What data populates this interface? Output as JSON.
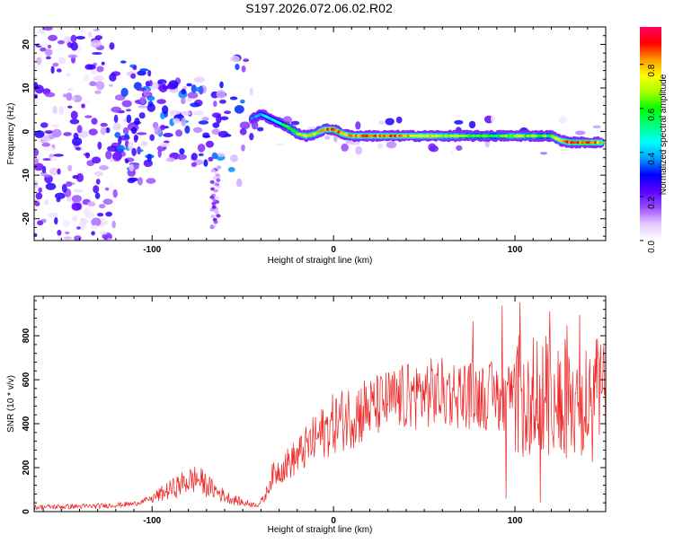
{
  "page": {
    "title": "S197.2026.072.06.02.R02"
  },
  "chart_data": [
    {
      "type": "heatmap",
      "title": "S197.2026.072.06.02.R02",
      "xlabel": "Height of straight line (km)",
      "ylabel": "Frequency (Hz)",
      "xlim": [
        -165,
        150
      ],
      "ylim": [
        -25,
        24
      ],
      "x_ticks": [
        -100,
        0,
        100
      ],
      "y_ticks": [
        20,
        10,
        0,
        -10,
        -20
      ],
      "colorbar": {
        "label": "Normalized spectral amplitude",
        "range": [
          0,
          0.97
        ],
        "ticks": [
          "0.0",
          "0.2",
          "0.4",
          "0.6",
          "0.8"
        ],
        "tick_values": [
          0,
          0.2,
          0.4,
          0.6,
          0.8
        ],
        "colors": [
          "#ffffff",
          "#e6ccff",
          "#9a4dff",
          "#5a00ff",
          "#0000ff",
          "#00a0ff",
          "#00ffff",
          "#00ff80",
          "#00ff00",
          "#a0ff00",
          "#ffff00",
          "#ff9900",
          "#ff0000",
          "#ff0066"
        ]
      },
      "ridge": {
        "x": [
          -45,
          -40,
          -35,
          -30,
          -25,
          -20,
          -15,
          -10,
          -5,
          0,
          5,
          10,
          20,
          30,
          40,
          50,
          60,
          70,
          80,
          90,
          100,
          110,
          120,
          125,
          130,
          140,
          148
        ],
        "y": [
          3,
          4,
          3,
          2,
          1,
          -0.5,
          -1,
          -0.5,
          0.5,
          0.5,
          -0.5,
          -1,
          -1,
          -1,
          -1,
          -1,
          -1,
          -1,
          -1,
          -1,
          -1,
          -1,
          -1,
          -2,
          -2.5,
          -2.5,
          -2.5
        ],
        "amplitude": [
          0.35,
          0.4,
          0.45,
          0.5,
          0.6,
          0.65,
          0.75,
          0.7,
          0.8,
          0.9,
          0.85,
          0.8,
          0.85,
          0.85,
          0.8,
          0.75,
          0.7,
          0.65,
          0.6,
          0.6,
          0.7,
          0.65,
          0.6,
          0.75,
          0.85,
          0.9,
          0.8
        ]
      }
    },
    {
      "type": "line",
      "xlabel": "Height of straight line (km)",
      "ylabel": "SNR (10 * v/v)",
      "xlim": [
        -165,
        150
      ],
      "ylim": [
        0,
        980
      ],
      "x_ticks": [
        -100,
        0,
        100
      ],
      "y_ticks": [
        0,
        200,
        400,
        600,
        800
      ],
      "color": "#ee2222",
      "envelope": {
        "x": [
          -165,
          -130,
          -110,
          -100,
          -90,
          -80,
          -75,
          -70,
          -60,
          -50,
          -42,
          -38,
          -34,
          -30,
          -20,
          -10,
          0,
          10,
          20,
          30,
          40,
          50,
          60,
          70,
          80,
          90,
          100,
          110,
          120,
          130,
          140,
          150
        ],
        "y": [
          20,
          25,
          35,
          60,
          100,
          140,
          150,
          120,
          70,
          40,
          30,
          60,
          160,
          190,
          250,
          330,
          400,
          440,
          470,
          500,
          520,
          540,
          540,
          535,
          530,
          525,
          520,
          515,
          520,
          510,
          500,
          480
        ]
      }
    }
  ]
}
